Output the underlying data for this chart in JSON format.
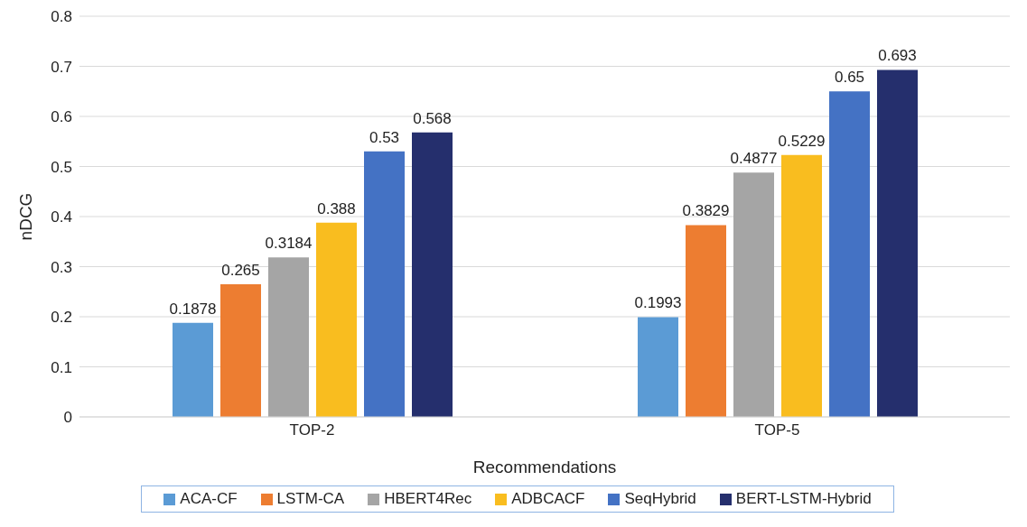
{
  "chart_data": {
    "type": "bar",
    "xlabel": "Recommendations",
    "ylabel": "nDCG",
    "categories": [
      "TOP-2",
      "TOP-5"
    ],
    "series": [
      {
        "name": "ACA-CF",
        "color": "#5b9bd5",
        "values": [
          0.1878,
          0.1993
        ]
      },
      {
        "name": "LSTM-CA",
        "color": "#ed7d31",
        "values": [
          0.265,
          0.3829
        ]
      },
      {
        "name": "HBERT4Rec",
        "color": "#a5a5a5",
        "values": [
          0.3184,
          0.4877
        ]
      },
      {
        "name": "ADBCACF",
        "color": "#f9bd1f",
        "values": [
          0.388,
          0.5229
        ]
      },
      {
        "name": "SeqHybrid",
        "color": "#4472c4",
        "values": [
          0.53,
          0.65
        ]
      },
      {
        "name": "BERT-LSTM-Hybrid",
        "color": "#252f6d",
        "values": [
          0.568,
          0.693
        ]
      }
    ],
    "ylim": [
      0,
      0.8
    ],
    "yticks": [
      0,
      0.1,
      0.2,
      0.3,
      0.4,
      0.5,
      0.6,
      0.7,
      0.8
    ],
    "grid": "y",
    "legend": "bottom",
    "data_labels": true
  }
}
